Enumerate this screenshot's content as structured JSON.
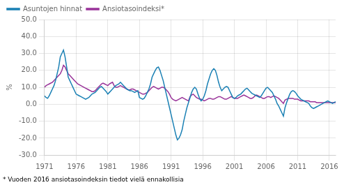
{
  "chart_data": {
    "type": "line",
    "ylabel": "%",
    "footnote": "* Vuoden 2016 ansiotasoindeksin tiedot vielä ennakollisia",
    "x": [
      1971,
      1971.25,
      1971.5,
      1971.75,
      1972,
      1972.25,
      1972.5,
      1972.75,
      1973,
      1973.25,
      1973.5,
      1973.75,
      1974,
      1974.25,
      1974.5,
      1974.75,
      1975,
      1975.25,
      1975.5,
      1975.75,
      1976,
      1976.25,
      1976.5,
      1976.75,
      1977,
      1977.25,
      1977.5,
      1977.75,
      1978,
      1978.25,
      1978.5,
      1978.75,
      1979,
      1979.25,
      1979.5,
      1979.75,
      1980,
      1980.25,
      1980.5,
      1980.75,
      1981,
      1981.25,
      1981.5,
      1981.75,
      1982,
      1982.25,
      1982.5,
      1982.75,
      1983,
      1983.25,
      1983.5,
      1983.75,
      1984,
      1984.25,
      1984.5,
      1984.75,
      1985,
      1985.25,
      1985.5,
      1985.75,
      1986,
      1986.25,
      1986.5,
      1986.75,
      1987,
      1987.25,
      1987.5,
      1987.75,
      1988,
      1988.25,
      1988.5,
      1988.75,
      1989,
      1989.25,
      1989.5,
      1989.75,
      1990,
      1990.25,
      1990.5,
      1990.75,
      1991,
      1991.25,
      1991.5,
      1991.75,
      1992,
      1992.25,
      1992.5,
      1992.75,
      1993,
      1993.25,
      1993.5,
      1993.75,
      1994,
      1994.25,
      1994.5,
      1994.75,
      1995,
      1995.25,
      1995.5,
      1995.75,
      1996,
      1996.25,
      1996.5,
      1996.75,
      1997,
      1997.25,
      1997.5,
      1997.75,
      1998,
      1998.25,
      1998.5,
      1998.75,
      1999,
      1999.25,
      1999.5,
      1999.75,
      2000,
      2000.25,
      2000.5,
      2000.75,
      2001,
      2001.25,
      2001.5,
      2001.75,
      2002,
      2002.25,
      2002.5,
      2002.75,
      2003,
      2003.25,
      2003.5,
      2003.75,
      2004,
      2004.25,
      2004.5,
      2004.75,
      2005,
      2005.25,
      2005.5,
      2005.75,
      2006,
      2006.25,
      2006.5,
      2006.75,
      2007,
      2007.25,
      2007.5,
      2007.75,
      2008,
      2008.25,
      2008.5,
      2008.75,
      2009,
      2009.25,
      2009.5,
      2009.75,
      2010,
      2010.25,
      2010.5,
      2010.75,
      2011,
      2011.25,
      2011.5,
      2011.75,
      2012,
      2012.25,
      2012.5,
      2012.75,
      2013,
      2013.25,
      2013.5,
      2013.75,
      2014,
      2014.25,
      2014.5,
      2014.75,
      2015,
      2015.25,
      2015.5,
      2015.75,
      2016,
      2016.25,
      2016.5,
      2016.75,
      2017
    ],
    "series": [
      {
        "name": "Asuntojen hinnat",
        "color": "#1A80B4",
        "values": [
          5.0,
          4.0,
          3.5,
          5.0,
          7.0,
          9.0,
          11.0,
          14.0,
          18.0,
          22.0,
          28.0,
          30.0,
          32.0,
          28.0,
          22.0,
          16.0,
          14.0,
          12.0,
          10.0,
          8.0,
          6.0,
          5.5,
          5.0,
          4.5,
          4.0,
          3.5,
          3.0,
          3.5,
          4.0,
          5.0,
          6.0,
          6.5,
          7.0,
          8.0,
          9.0,
          10.0,
          10.5,
          9.5,
          8.5,
          7.5,
          6.0,
          7.0,
          8.0,
          9.0,
          10.0,
          11.0,
          11.5,
          12.0,
          13.0,
          12.0,
          11.0,
          10.0,
          9.0,
          8.5,
          8.0,
          8.0,
          7.5,
          7.0,
          7.5,
          8.0,
          4.0,
          3.5,
          3.0,
          3.5,
          5.0,
          7.0,
          9.0,
          12.0,
          16.0,
          18.0,
          20.0,
          21.5,
          22.0,
          20.0,
          17.0,
          14.0,
          10.0,
          6.0,
          2.0,
          -2.0,
          -6.0,
          -10.0,
          -14.0,
          -18.0,
          -21.0,
          -20.0,
          -18.0,
          -15.0,
          -10.0,
          -6.0,
          -2.0,
          1.0,
          4.0,
          7.0,
          9.0,
          10.0,
          9.0,
          6.0,
          3.5,
          2.0,
          3.0,
          5.0,
          8.0,
          12.0,
          15.0,
          18.0,
          20.0,
          21.0,
          20.0,
          17.0,
          13.0,
          10.0,
          8.0,
          9.0,
          10.0,
          10.5,
          10.0,
          8.0,
          6.0,
          4.0,
          3.5,
          4.0,
          5.0,
          5.5,
          6.0,
          7.0,
          8.0,
          9.0,
          9.5,
          8.5,
          7.5,
          6.5,
          6.0,
          5.5,
          5.0,
          4.5,
          4.0,
          5.0,
          6.5,
          8.0,
          9.5,
          10.0,
          9.0,
          8.0,
          7.0,
          5.0,
          3.0,
          0.5,
          -1.0,
          -3.0,
          -5.0,
          -7.0,
          -2.0,
          1.0,
          3.5,
          6.0,
          7.5,
          8.0,
          7.5,
          6.5,
          5.0,
          4.0,
          3.0,
          2.5,
          2.0,
          1.5,
          1.0,
          0.5,
          -1.0,
          -2.0,
          -2.5,
          -2.0,
          -1.5,
          -1.0,
          -0.5,
          0.0,
          0.5,
          1.0,
          1.5,
          2.0,
          1.5,
          1.0,
          0.5,
          1.0,
          1.5
        ]
      },
      {
        "name": "Ansiotasoindeksi*",
        "color": "#993399",
        "values": [
          10.0,
          11.0,
          11.5,
          12.0,
          12.5,
          13.0,
          14.0,
          15.0,
          16.0,
          17.0,
          18.0,
          20.0,
          23.0,
          22.0,
          20.0,
          18.0,
          17.0,
          16.0,
          15.0,
          14.0,
          13.0,
          12.0,
          11.5,
          11.0,
          10.5,
          10.0,
          9.5,
          9.0,
          8.5,
          8.0,
          7.5,
          7.5,
          8.0,
          9.0,
          10.0,
          11.0,
          12.0,
          12.5,
          12.0,
          11.5,
          11.0,
          12.0,
          12.5,
          13.0,
          11.0,
          10.0,
          10.0,
          10.5,
          11.0,
          10.5,
          10.0,
          9.5,
          9.0,
          8.5,
          8.5,
          9.0,
          9.0,
          8.5,
          8.0,
          7.5,
          7.0,
          6.5,
          6.0,
          6.0,
          6.5,
          7.0,
          8.0,
          9.0,
          10.0,
          10.5,
          10.0,
          9.5,
          9.0,
          9.5,
          10.0,
          10.0,
          9.5,
          8.5,
          7.5,
          6.0,
          4.0,
          3.0,
          2.5,
          2.0,
          2.5,
          3.0,
          3.5,
          4.0,
          3.5,
          3.0,
          2.5,
          2.0,
          4.5,
          5.5,
          6.0,
          5.0,
          4.0,
          3.5,
          3.0,
          3.0,
          2.5,
          2.0,
          2.5,
          3.0,
          3.5,
          3.5,
          3.0,
          3.0,
          3.5,
          4.0,
          4.5,
          4.5,
          4.0,
          3.5,
          3.0,
          3.0,
          3.5,
          4.0,
          4.5,
          4.0,
          3.5,
          3.5,
          3.5,
          4.0,
          4.5,
          5.0,
          5.5,
          5.0,
          4.5,
          4.0,
          3.5,
          3.5,
          4.0,
          5.0,
          5.5,
          5.0,
          4.5,
          4.0,
          3.5,
          3.5,
          4.0,
          4.5,
          4.5,
          4.0,
          4.5,
          5.0,
          4.5,
          4.0,
          3.5,
          2.5,
          1.5,
          0.5,
          2.5,
          3.0,
          3.5,
          3.5,
          3.5,
          3.5,
          3.0,
          3.0,
          3.0,
          2.5,
          2.0,
          2.0,
          2.0,
          2.0,
          2.0,
          2.0,
          1.5,
          1.5,
          1.5,
          1.5,
          1.0,
          1.0,
          1.0,
          1.0,
          1.0,
          1.0,
          1.0,
          1.0,
          1.0,
          1.0,
          1.0,
          1.0,
          1.0
        ]
      }
    ],
    "xlim": [
      1971,
      2017
    ],
    "xticks": [
      1971,
      1976,
      1981,
      1986,
      1991,
      1996,
      2001,
      2006,
      2011,
      2016
    ],
    "ylim": [
      -30,
      50
    ],
    "yticks": [
      {
        "value": -30,
        "label": "-30.0"
      },
      {
        "value": -20,
        "label": "-20.0"
      },
      {
        "value": -10,
        "label": "-10.0"
      },
      {
        "value": 0,
        "label": "0.0"
      },
      {
        "value": 10,
        "label": "10.0"
      },
      {
        "value": 20,
        "label": "20.0"
      },
      {
        "value": 30,
        "label": "30.0"
      },
      {
        "value": 40,
        "label": "40.0"
      },
      {
        "value": 50,
        "label": "50.0"
      }
    ],
    "grid": true,
    "legend": "upper left"
  }
}
